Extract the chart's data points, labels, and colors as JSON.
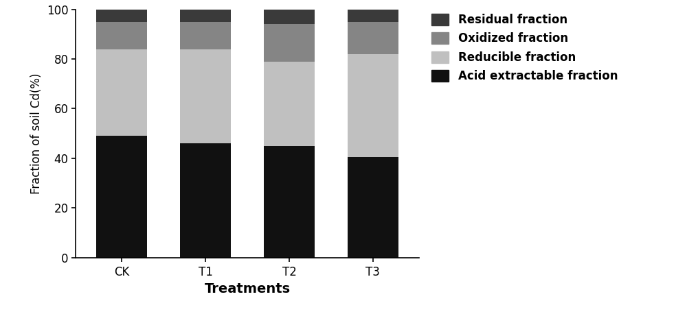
{
  "categories": [
    "CK",
    "T1",
    "T2",
    "T3"
  ],
  "fractions": {
    "Acid extractable fraction": {
      "values": [
        49.0,
        46.0,
        45.0,
        40.5
      ],
      "color": "#111111"
    },
    "Reducible fraction": {
      "values": [
        35.0,
        38.0,
        34.0,
        41.5
      ],
      "color": "#c0c0c0"
    },
    "Oxidized fraction": {
      "values": [
        11.0,
        11.0,
        15.0,
        13.0
      ],
      "color": "#858585"
    },
    "Residual fraction": {
      "values": [
        5.0,
        5.0,
        6.0,
        5.0
      ],
      "color": "#3a3a3a"
    }
  },
  "legend_order": [
    "Residual fraction",
    "Oxidized fraction",
    "Reducible fraction",
    "Acid extractable fraction"
  ],
  "ylabel": "Fraction of soil Cd(%)",
  "xlabel": "Treatments",
  "ylim": [
    0,
    100
  ],
  "yticks": [
    0,
    20,
    40,
    60,
    80,
    100
  ],
  "bar_width": 0.6,
  "background_color": "#ffffff",
  "legend_fontsize": 12,
  "tick_fontsize": 12,
  "xlabel_fontsize": 14,
  "ylabel_fontsize": 12
}
